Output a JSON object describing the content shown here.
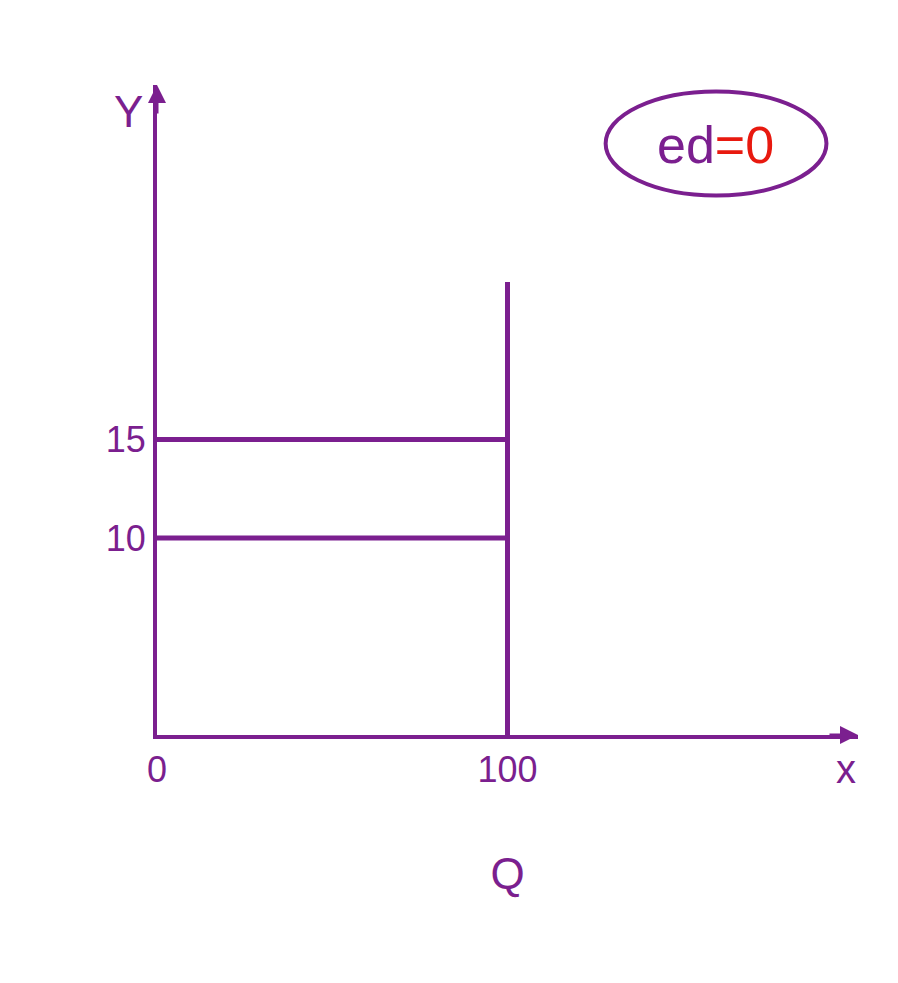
{
  "chart_data": {
    "type": "line",
    "x_label": "Q",
    "y_label": "Y",
    "x_end_label": "x",
    "annotation": {
      "parts": [
        "ed",
        "=0"
      ],
      "colors": [
        "#7b1f8f",
        "#e8190f"
      ]
    },
    "xlim": [
      0,
      200
    ],
    "ylim": [
      0,
      33
    ],
    "xticks": [
      0,
      100
    ],
    "yticks": [
      10,
      15
    ],
    "grid": false,
    "series": [
      {
        "color": "#7b1f8f",
        "x": [
          100,
          100
        ],
        "values": [
          0,
          23
        ]
      },
      {
        "color": "#7b1f8f",
        "x": [
          0,
          100
        ],
        "values": [
          15,
          15
        ]
      },
      {
        "color": "#7b1f8f",
        "x": [
          0,
          100
        ],
        "values": [
          10,
          10
        ]
      }
    ]
  }
}
